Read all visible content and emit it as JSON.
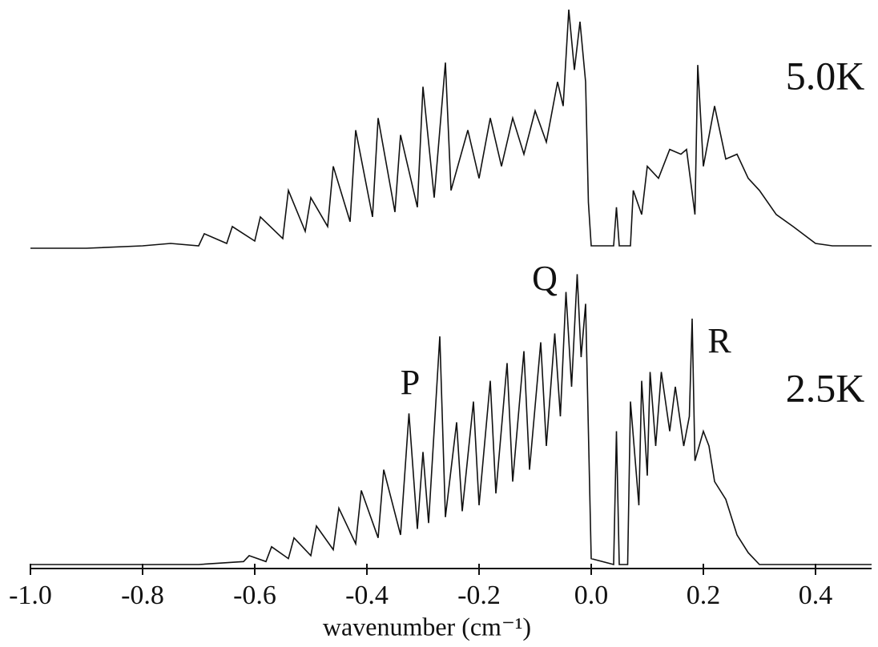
{
  "chart_data": [
    {
      "type": "line",
      "label": "5.0K",
      "color": "#111111",
      "xlim": [
        -1.0,
        0.5
      ],
      "ylim": [
        0,
        100
      ],
      "x": [
        -1.0,
        -0.9,
        -0.8,
        -0.75,
        -0.7,
        -0.69,
        -0.65,
        -0.64,
        -0.6,
        -0.59,
        -0.55,
        -0.54,
        -0.51,
        -0.5,
        -0.47,
        -0.46,
        -0.43,
        -0.42,
        -0.39,
        -0.38,
        -0.35,
        -0.34,
        -0.31,
        -0.3,
        -0.28,
        -0.26,
        -0.25,
        -0.22,
        -0.2,
        -0.18,
        -0.16,
        -0.14,
        -0.12,
        -0.1,
        -0.08,
        -0.06,
        -0.05,
        -0.04,
        -0.03,
        -0.02,
        -0.01,
        -0.005,
        0.0,
        0.04,
        0.045,
        0.05,
        0.07,
        0.075,
        0.09,
        0.1,
        0.12,
        0.14,
        0.16,
        0.17,
        0.185,
        0.19,
        0.2,
        0.22,
        0.24,
        0.26,
        0.28,
        0.3,
        0.33,
        0.36,
        0.4,
        0.43,
        0.5
      ],
      "values": [
        1,
        1,
        2,
        3,
        2,
        7,
        3,
        10,
        4,
        14,
        5,
        25,
        8,
        22,
        10,
        35,
        12,
        50,
        14,
        55,
        16,
        48,
        18,
        68,
        22,
        78,
        25,
        50,
        30,
        55,
        35,
        55,
        40,
        58,
        45,
        70,
        60,
        100,
        75,
        95,
        70,
        20,
        2,
        2,
        18,
        2,
        2,
        25,
        15,
        35,
        30,
        42,
        40,
        42,
        15,
        77,
        35,
        60,
        38,
        40,
        30,
        25,
        15,
        10,
        3,
        2,
        2
      ]
    },
    {
      "type": "line",
      "label": "2.5K",
      "color": "#111111",
      "annotations": [
        "P",
        "Q",
        "R"
      ],
      "xlabel": "wavenumber (cm⁻¹)",
      "xlim": [
        -1.0,
        0.5
      ],
      "ylim": [
        0,
        100
      ],
      "xticks": [
        {
          "value": -1.0,
          "label": "-1.0"
        },
        -0.8,
        -0.6,
        -0.4,
        -0.2,
        {
          "value": 0,
          "label": "0.0"
        },
        0.2,
        0.4
      ],
      "x": [
        -1.0,
        -0.7,
        -0.62,
        -0.61,
        -0.58,
        -0.57,
        -0.54,
        -0.53,
        -0.5,
        -0.49,
        -0.46,
        -0.45,
        -0.42,
        -0.41,
        -0.38,
        -0.37,
        -0.34,
        -0.325,
        -0.31,
        -0.3,
        -0.29,
        -0.27,
        -0.26,
        -0.24,
        -0.23,
        -0.21,
        -0.2,
        -0.18,
        -0.17,
        -0.15,
        -0.14,
        -0.12,
        -0.11,
        -0.09,
        -0.08,
        -0.065,
        -0.055,
        -0.045,
        -0.035,
        -0.025,
        -0.018,
        -0.01,
        0.0,
        0.04,
        0.045,
        0.05,
        0.065,
        0.07,
        0.085,
        0.09,
        0.1,
        0.105,
        0.115,
        0.125,
        0.14,
        0.15,
        0.165,
        0.175,
        0.18,
        0.185,
        0.2,
        0.21,
        0.22,
        0.24,
        0.26,
        0.28,
        0.3,
        0.5
      ],
      "values": [
        0,
        0,
        1,
        3,
        1,
        6,
        2,
        9,
        3,
        13,
        5,
        19,
        7,
        25,
        9,
        32,
        10,
        51,
        12,
        38,
        14,
        77,
        16,
        48,
        18,
        55,
        20,
        62,
        24,
        68,
        28,
        72,
        32,
        75,
        40,
        78,
        50,
        92,
        60,
        98,
        70,
        88,
        2,
        0,
        45,
        0,
        0,
        55,
        20,
        62,
        30,
        65,
        40,
        65,
        45,
        60,
        40,
        50,
        83,
        35,
        45,
        40,
        28,
        22,
        10,
        4,
        0,
        0
      ]
    }
  ]
}
